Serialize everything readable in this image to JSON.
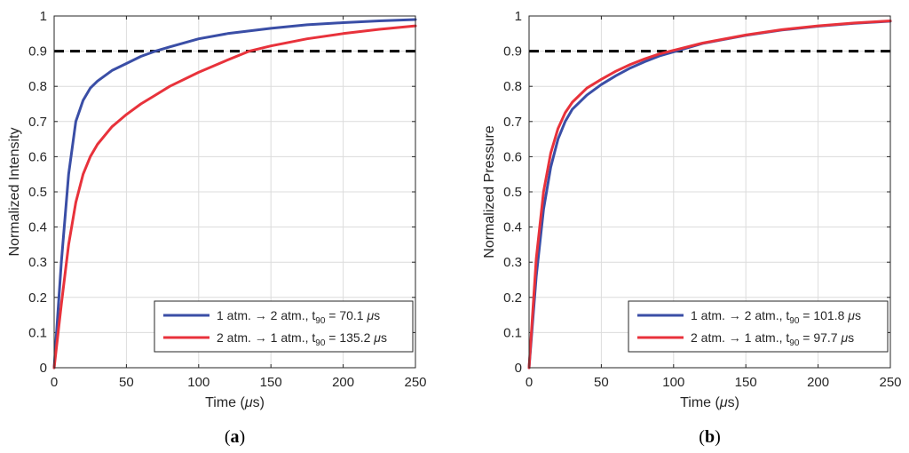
{
  "chart_data": [
    {
      "type": "line",
      "panel_label": "(a)",
      "panel_letter": "a",
      "xlabel": "Time (μs)",
      "xlabel_main": "Time (",
      "xlabel_mu": "μ",
      "xlabel_unit": "s)",
      "ylabel": "Normalized Intensity",
      "xlim": [
        0,
        250
      ],
      "ylim": [
        0,
        1
      ],
      "xticks": [
        0,
        50,
        100,
        150,
        200,
        250
      ],
      "yticks": [
        0,
        0.1,
        0.2,
        0.3,
        0.4,
        0.5,
        0.6,
        0.7,
        0.8,
        0.9,
        1
      ],
      "grid": true,
      "threshold": {
        "y": 0.9,
        "style": "dashed",
        "color": "#000000"
      },
      "legend_position": "bottom-right",
      "series": [
        {
          "name": "1 atm. → 2 atm., t90 = 70.1 μs",
          "legend_prefix": "1 atm. → 2 atm., t",
          "legend_sub": "90",
          "legend_mid": " = 70.1 ",
          "legend_mu": "μ",
          "legend_unit": "s",
          "color": "#3a4ea6",
          "x": [
            0,
            5,
            10,
            15,
            20,
            25,
            30,
            40,
            50,
            60,
            70,
            80,
            100,
            120,
            150,
            175,
            200,
            225,
            250
          ],
          "y": [
            0,
            0.3,
            0.55,
            0.7,
            0.76,
            0.795,
            0.815,
            0.845,
            0.865,
            0.885,
            0.9,
            0.912,
            0.935,
            0.95,
            0.965,
            0.975,
            0.981,
            0.986,
            0.99
          ]
        },
        {
          "name": "2 atm. → 1 atm., t90 = 135.2 μs",
          "legend_prefix": "2 atm. → 1 atm., t",
          "legend_sub": "90",
          "legend_mid": " = 135.2 ",
          "legend_mu": "μ",
          "legend_unit": "s",
          "color": "#e8323b",
          "x": [
            0,
            5,
            10,
            15,
            20,
            25,
            30,
            40,
            50,
            60,
            70,
            80,
            100,
            120,
            135,
            150,
            175,
            200,
            225,
            250
          ],
          "y": [
            0,
            0.18,
            0.35,
            0.47,
            0.55,
            0.6,
            0.635,
            0.685,
            0.72,
            0.75,
            0.775,
            0.8,
            0.84,
            0.875,
            0.9,
            0.915,
            0.935,
            0.95,
            0.962,
            0.972
          ]
        }
      ]
    },
    {
      "type": "line",
      "panel_label": "(b)",
      "panel_letter": "b",
      "xlabel": "Time (μs)",
      "xlabel_main": "Time (",
      "xlabel_mu": "μ",
      "xlabel_unit": "s)",
      "ylabel": "Normalized Pressure",
      "xlim": [
        0,
        250
      ],
      "ylim": [
        0,
        1
      ],
      "xticks": [
        0,
        50,
        100,
        150,
        200,
        250
      ],
      "yticks": [
        0,
        0.1,
        0.2,
        0.3,
        0.4,
        0.5,
        0.6,
        0.7,
        0.8,
        0.9,
        1
      ],
      "grid": true,
      "threshold": {
        "y": 0.9,
        "style": "dashed",
        "color": "#000000"
      },
      "legend_position": "bottom-right",
      "series": [
        {
          "name": "1 atm. → 2 atm., t90 = 101.8 μs",
          "legend_prefix": "1 atm. → 2 atm., t",
          "legend_sub": "90",
          "legend_mid": " = 101.8 ",
          "legend_mu": "μ",
          "legend_unit": "s",
          "color": "#3a4ea6",
          "x": [
            0,
            5,
            10,
            15,
            20,
            25,
            30,
            40,
            50,
            60,
            70,
            80,
            90,
            101.8,
            120,
            150,
            175,
            200,
            225,
            250
          ],
          "y": [
            0,
            0.26,
            0.45,
            0.57,
            0.65,
            0.7,
            0.735,
            0.775,
            0.805,
            0.83,
            0.852,
            0.87,
            0.886,
            0.9,
            0.922,
            0.945,
            0.96,
            0.971,
            0.979,
            0.985
          ]
        },
        {
          "name": "2 atm. → 1 atm., t90 = 97.7 μs",
          "legend_prefix": "2 atm. → 1 atm., t",
          "legend_sub": "90",
          "legend_mid": " = 97.7 ",
          "legend_mu": "μ",
          "legend_unit": "s",
          "color": "#e8323b",
          "x": [
            0,
            5,
            10,
            15,
            20,
            25,
            30,
            40,
            50,
            60,
            70,
            80,
            90,
            97.7,
            120,
            150,
            175,
            200,
            225,
            250
          ],
          "y": [
            0,
            0.31,
            0.5,
            0.61,
            0.68,
            0.725,
            0.755,
            0.795,
            0.82,
            0.843,
            0.862,
            0.878,
            0.892,
            0.9,
            0.923,
            0.946,
            0.961,
            0.972,
            0.98,
            0.986
          ]
        }
      ]
    }
  ]
}
